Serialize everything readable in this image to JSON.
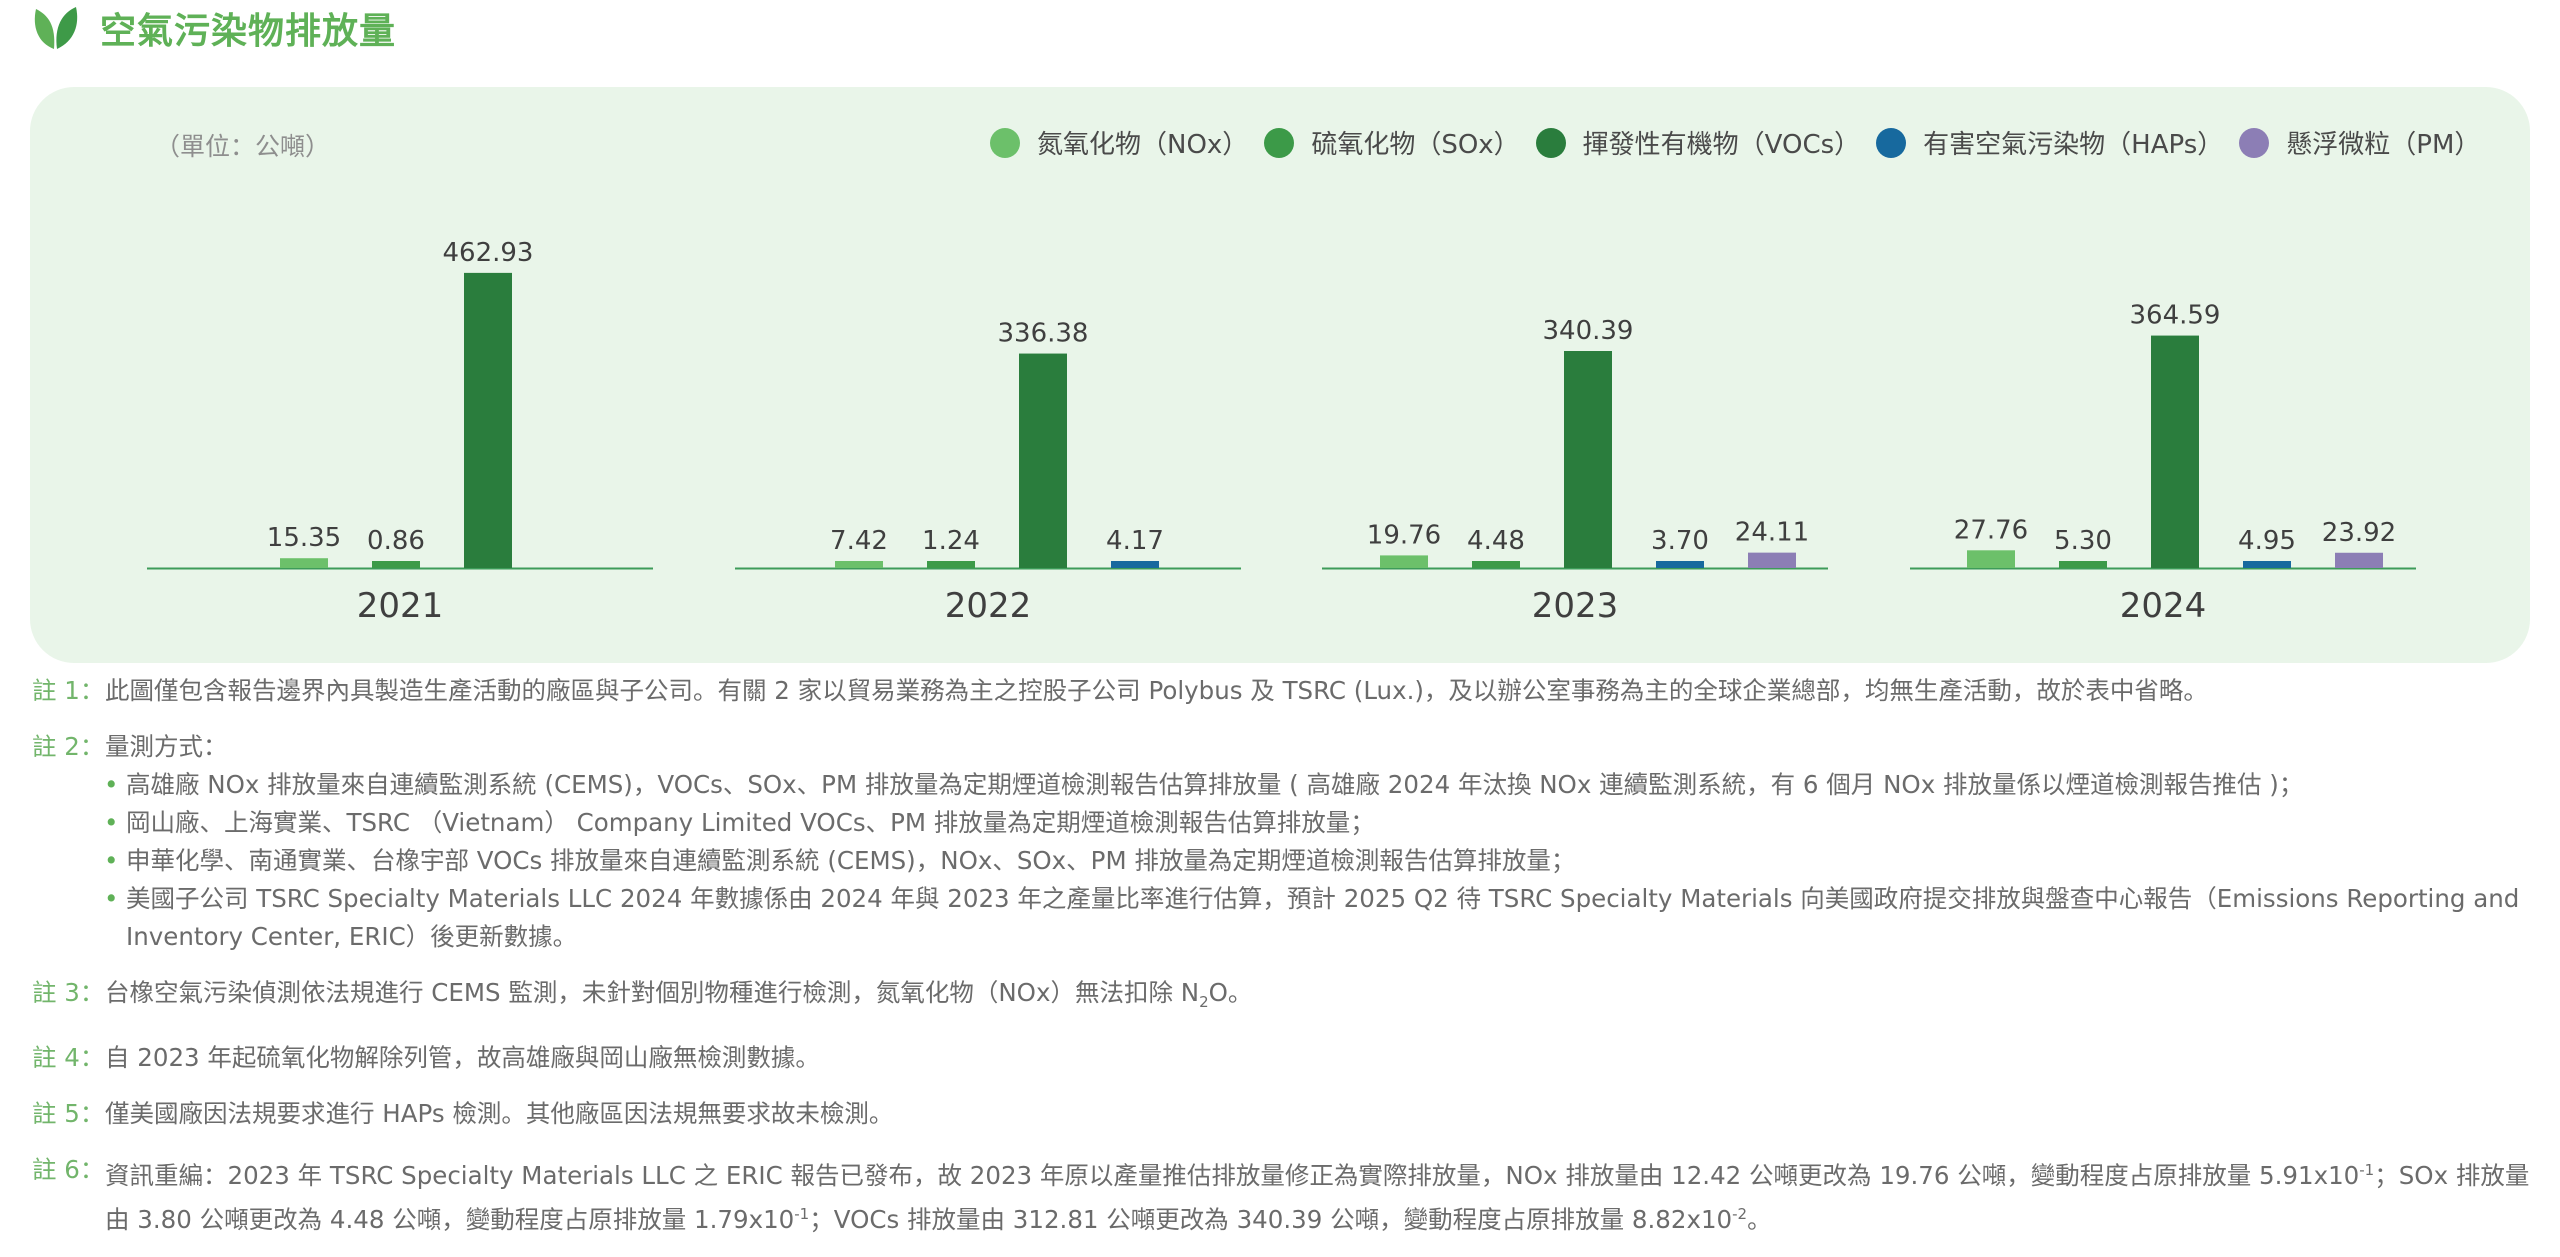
{
  "header": {
    "title": "空氣污染物排放量",
    "icon": "leaf-icon"
  },
  "chart_data": {
    "type": "bar",
    "unit_label": "（單位：公噸）",
    "categories": [
      "2021",
      "2022",
      "2023",
      "2024"
    ],
    "series": [
      {
        "name": "氮氧化物（NOx）",
        "color": "#6cc06a",
        "values": [
          15.35,
          7.42,
          19.76,
          27.76
        ]
      },
      {
        "name": "硫氧化物（SOx）",
        "color": "#3c9a48",
        "values": [
          0.86,
          1.24,
          4.48,
          5.3
        ]
      },
      {
        "name": "揮發性有機物（VOCs）",
        "color": "#2a7d3d",
        "values": [
          462.93,
          336.38,
          340.39,
          364.59
        ]
      },
      {
        "name": "有害空氣污染物（HAPs）",
        "color": "#17699e",
        "values": [
          null,
          4.17,
          3.7,
          4.95
        ]
      },
      {
        "name": "懸浮微粒（PM）",
        "color": "#8c7eb5",
        "values": [
          null,
          null,
          24.11,
          23.92
        ]
      }
    ],
    "value_labels": [
      [
        "15.35",
        "0.86",
        "462.93",
        null,
        null
      ],
      [
        "7.42",
        "1.24",
        "336.38",
        "4.17",
        null
      ],
      [
        "19.76",
        "4.48",
        "340.39",
        "3.70",
        "24.11"
      ],
      [
        "27.76",
        "5.30",
        "364.59",
        "4.95",
        "23.92"
      ]
    ],
    "legend_position": "top-right",
    "grid": false
  },
  "notes": {
    "n1": {
      "label": "註 1：",
      "text": "此圖僅包含報告邊界內具製造生產活動的廠區與子公司。有關 2 家以貿易業務為主之控股子公司 Polybus 及 TSRC (Lux.)，及以辦公室事務為主的全球企業總部，均無生產活動，故於表中省略。"
    },
    "n2": {
      "label": "註 2：",
      "text": "量測方式：",
      "bullets": [
        "高雄廠 NOx 排放量來自連續監測系統 (CEMS)，VOCs、SOx、PM 排放量為定期煙道檢測報告估算排放量 ( 高雄廠 2024 年汰換 NOx 連續監測系統，有 6 個月 NOx 排放量係以煙道檢測報告推估 )；",
        "岡山廠、上海實業、TSRC （Vietnam） Company Limited VOCs、PM 排放量為定期煙道檢測報告估算排放量；",
        "申華化學、南通實業、台橡宇部 VOCs 排放量來自連續監測系統 (CEMS)，NOx、SOx、PM 排放量為定期煙道檢測報告估算排放量；",
        "美國子公司 TSRC Specialty Materials LLC 2024 年數據係由 2024 年與 2023 年之產量比率進行估算，預計 2025 Q2 待 TSRC Specialty Materials 向美國政府提交排放與盤查中心報告（Emissions Reporting and Inventory Center, ERIC）後更新數據。"
      ]
    },
    "n3": {
      "label": "註 3：",
      "text_before": "台橡空氣污染偵測依法規進行 CEMS 監測，未針對個別物種進行檢測，氮氧化物（NOx）無法扣除 N",
      "sub": "2",
      "text_after": "O。"
    },
    "n4": {
      "label": "註 4：",
      "text": "自 2023 年起硫氧化物解除列管，故高雄廠與岡山廠無檢測數據。"
    },
    "n5": {
      "label": "註 5：",
      "text": "僅美國廠因法規要求進行 HAPs 檢測。其他廠區因法規無要求故未檢測。"
    },
    "n6": {
      "label": "註 6：",
      "part1": "資訊重編：2023 年 TSRC Specialty Materials LLC 之 ERIC 報告已發布，故 2023 年原以產量推估排放量修正為實際排放量，NOx 排放量由 12.42 公噸更改為 19.76 公噸，變動程度占原排放量 5.91x10",
      "sup1": "-1",
      "part2": "；SOx 排放量由 3.80 公噸更改為 4.48 公噸，變動程度占原排放量 1.79x10",
      "sup2": "-1",
      "part3": "；VOCs 排放量由 312.81 公噸更改為 340.39 公噸，變動程度占原排放量 8.82x10",
      "sup3": "-2",
      "part4": "。"
    }
  }
}
